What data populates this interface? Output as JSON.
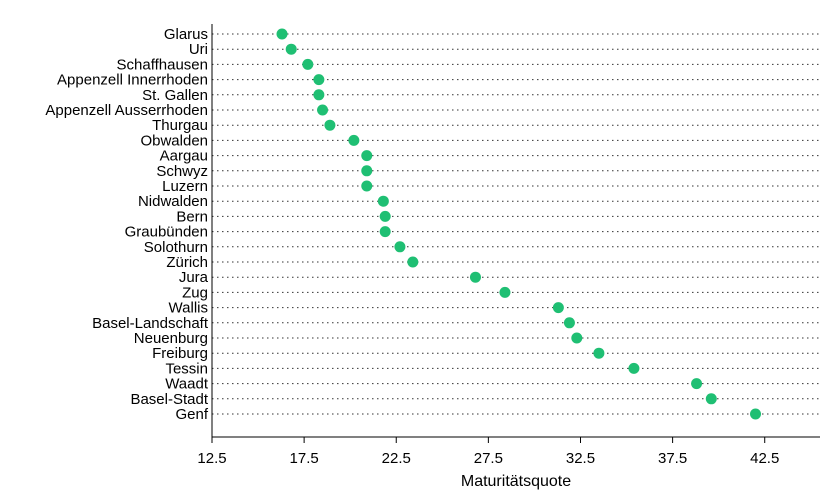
{
  "chart_data": {
    "type": "scatter",
    "title": "",
    "xlabel": "Maturitätsquote",
    "ylabel": "",
    "xlim": [
      12.5,
      45.5
    ],
    "xticks": [
      "12.5",
      "17.5",
      "22.5",
      "27.5",
      "32.5",
      "37.5",
      "42.5"
    ],
    "grid": "dotted horizontal guide lines per category",
    "legend": "none",
    "marker_color": "#1fbf73",
    "categories": [
      "Glarus",
      "Uri",
      "Schaffhausen",
      "Appenzell Innerrhoden",
      "St. Gallen",
      "Appenzell Ausserrhoden",
      "Thurgau",
      "Obwalden",
      "Aargau",
      "Schwyz",
      "Luzern",
      "Nidwalden",
      "Bern",
      "Graubünden",
      "Solothurn",
      "Zürich",
      "Jura",
      "Zug",
      "Wallis",
      "Basel-Landschaft",
      "Neuenburg",
      "Freiburg",
      "Tessin",
      "Waadt",
      "Basel-Stadt",
      "Genf"
    ],
    "values": [
      16.3,
      16.8,
      17.7,
      18.3,
      18.3,
      18.5,
      18.9,
      20.2,
      20.9,
      20.9,
      20.9,
      21.8,
      21.9,
      21.9,
      22.7,
      23.4,
      26.8,
      28.4,
      31.3,
      31.9,
      32.3,
      33.5,
      35.4,
      38.8,
      39.6,
      42.0
    ]
  }
}
